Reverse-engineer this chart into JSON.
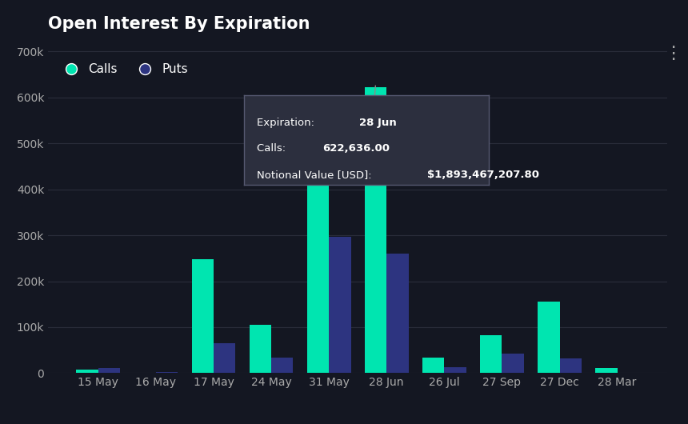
{
  "title": "Open Interest By Expiration",
  "categories": [
    "15 May",
    "16 May",
    "17 May",
    "24 May",
    "31 May",
    "28 Jun",
    "26 Jul",
    "27 Sep",
    "27 Dec",
    "28 Mar"
  ],
  "calls": [
    8000,
    1500,
    248000,
    105000,
    560000,
    622636,
    33000,
    83000,
    155000,
    11000
  ],
  "puts": [
    12000,
    2000,
    65000,
    33000,
    297000,
    260000,
    13000,
    43000,
    32000,
    0
  ],
  "calls_color": "#00e5b0",
  "puts_color": "#2d3480",
  "background_color": "#141722",
  "plot_bg_color": "#141722",
  "grid_color": "#2a2d3a",
  "text_color": "#ffffff",
  "tick_color": "#aaaaaa",
  "tooltip_bg": "#2c2f3e",
  "tooltip_border": "#555870",
  "ylim": [
    0,
    720000
  ],
  "yticks": [
    0,
    100000,
    200000,
    300000,
    400000,
    500000,
    600000,
    700000
  ],
  "ytick_labels": [
    "0",
    "100k",
    "200k",
    "300k",
    "400k",
    "500k",
    "600k",
    "700k"
  ],
  "legend_calls": "Calls",
  "legend_puts": "Puts",
  "tooltip_expiry": "28 Jun",
  "tooltip_calls": "622,636.00",
  "tooltip_notional": "$1,893,467,207.80",
  "bar_width": 0.38,
  "title_fontsize": 15,
  "axis_fontsize": 10,
  "legend_fontsize": 11
}
